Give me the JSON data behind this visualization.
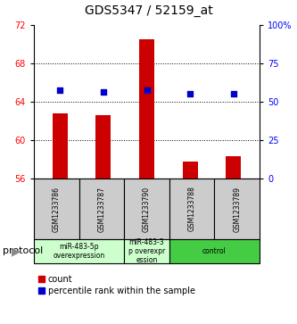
{
  "title": "GDS5347 / 52159_at",
  "samples": [
    "GSM1233786",
    "GSM1233787",
    "GSM1233790",
    "GSM1233788",
    "GSM1233789"
  ],
  "counts": [
    62.8,
    62.6,
    70.5,
    57.8,
    58.3
  ],
  "percentiles": [
    57.5,
    56.5,
    57.5,
    55.5,
    55.5
  ],
  "ylim_left": [
    56,
    72
  ],
  "ylim_right": [
    0,
    100
  ],
  "yticks_left": [
    56,
    60,
    64,
    68,
    72
  ],
  "yticks_right": [
    0,
    25,
    50,
    75,
    100
  ],
  "ytick_labels_right": [
    "0",
    "25",
    "50",
    "75",
    "100%"
  ],
  "bar_color": "#cc0000",
  "dot_color": "#0000cc",
  "protocol_label": "protocol",
  "legend_count_label": "count",
  "legend_percentile_label": "percentile rank within the sample",
  "title_fontsize": 10,
  "tick_fontsize": 7,
  "sample_fontsize": 5.5,
  "group_fontsize": 5.5,
  "legend_fontsize": 7
}
